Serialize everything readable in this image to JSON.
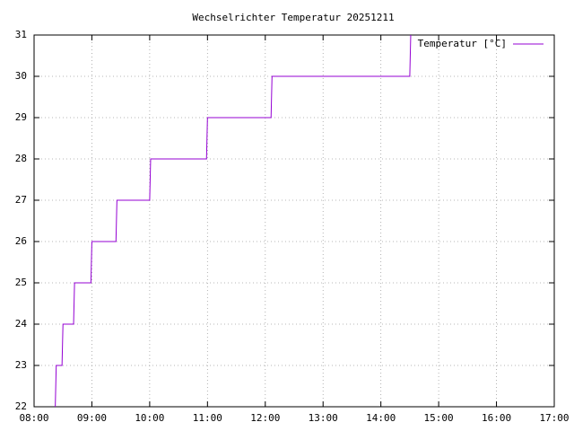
{
  "chart_data": {
    "type": "line",
    "title": "Wechselrichter Temperatur 20251211",
    "x": [
      "08:22",
      "08:23",
      "08:29",
      "08:30",
      "08:41",
      "08:42",
      "08:59",
      "09:00",
      "09:25",
      "09:26",
      "10:00",
      "10:01",
      "10:59",
      "11:00",
      "12:06",
      "12:07",
      "14:30",
      "14:31"
    ],
    "series": [
      {
        "name": "Temperatur [°C]",
        "color": "#9400d3",
        "values": [
          22,
          23,
          23,
          24,
          24,
          25,
          25,
          26,
          26,
          27,
          27,
          28,
          28,
          29,
          29,
          30,
          30,
          31
        ]
      }
    ],
    "xlim": [
      "08:00",
      "17:00"
    ],
    "xticks": [
      "08:00",
      "09:00",
      "10:00",
      "11:00",
      "12:00",
      "13:00",
      "14:00",
      "15:00",
      "16:00",
      "17:00"
    ],
    "ylim": [
      22,
      31
    ],
    "yticks": [
      22,
      23,
      24,
      25,
      26,
      27,
      28,
      29,
      30,
      31
    ],
    "grid": true,
    "legend": "top-right"
  }
}
